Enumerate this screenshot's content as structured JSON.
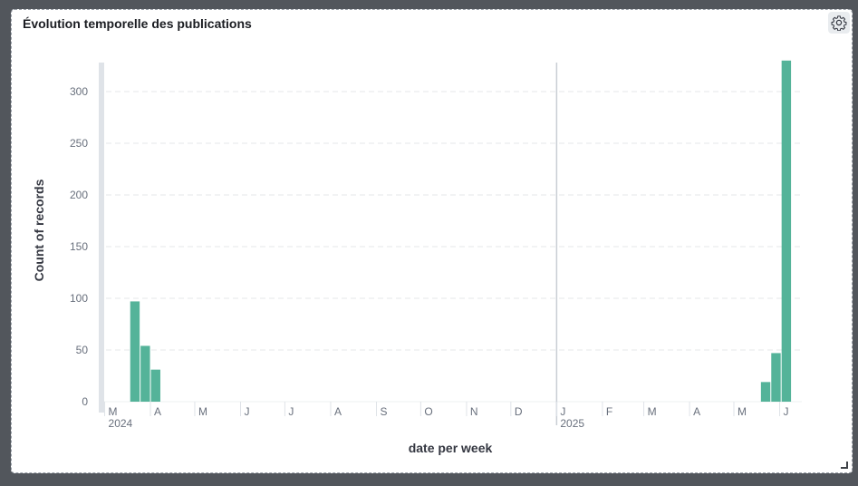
{
  "panel": {
    "title": "Évolution temporelle des publications",
    "settings_icon": "gear-icon",
    "resize_icon": "resize-handle-icon"
  },
  "chart_data": {
    "type": "bar",
    "title": "",
    "xlabel": "date per week",
    "ylabel": "Count of records",
    "ylim": [
      0,
      330
    ],
    "yticks": [
      0,
      50,
      100,
      150,
      200,
      250,
      300
    ],
    "grid": true,
    "bar_color": "#54b399",
    "x_domain": [
      "2024-02-26",
      "2025-06-16"
    ],
    "year_markers": [
      {
        "date": "2024-03-01",
        "label": "2024"
      },
      {
        "date": "2025-01-01",
        "label": "2025"
      }
    ],
    "month_ticks": [
      {
        "date": "2024-03-01",
        "label": "M"
      },
      {
        "date": "2024-04-01",
        "label": "A"
      },
      {
        "date": "2024-05-01",
        "label": "M"
      },
      {
        "date": "2024-06-01",
        "label": "J"
      },
      {
        "date": "2024-07-01",
        "label": "J"
      },
      {
        "date": "2024-08-01",
        "label": "A"
      },
      {
        "date": "2024-09-01",
        "label": "S"
      },
      {
        "date": "2024-10-01",
        "label": "O"
      },
      {
        "date": "2024-11-01",
        "label": "N"
      },
      {
        "date": "2024-12-01",
        "label": "D"
      },
      {
        "date": "2025-01-01",
        "label": "J"
      },
      {
        "date": "2025-02-01",
        "label": "F"
      },
      {
        "date": "2025-03-01",
        "label": "M"
      },
      {
        "date": "2025-04-01",
        "label": "A"
      },
      {
        "date": "2025-05-01",
        "label": "M"
      },
      {
        "date": "2025-06-01",
        "label": "J"
      }
    ],
    "points": [
      {
        "week": "2024-03-18",
        "count": 97
      },
      {
        "week": "2024-03-25",
        "count": 54
      },
      {
        "week": "2024-04-01",
        "count": 31
      },
      {
        "week": "2025-05-19",
        "count": 19
      },
      {
        "week": "2025-05-26",
        "count": 47
      },
      {
        "week": "2025-06-02",
        "count": 330
      }
    ]
  }
}
